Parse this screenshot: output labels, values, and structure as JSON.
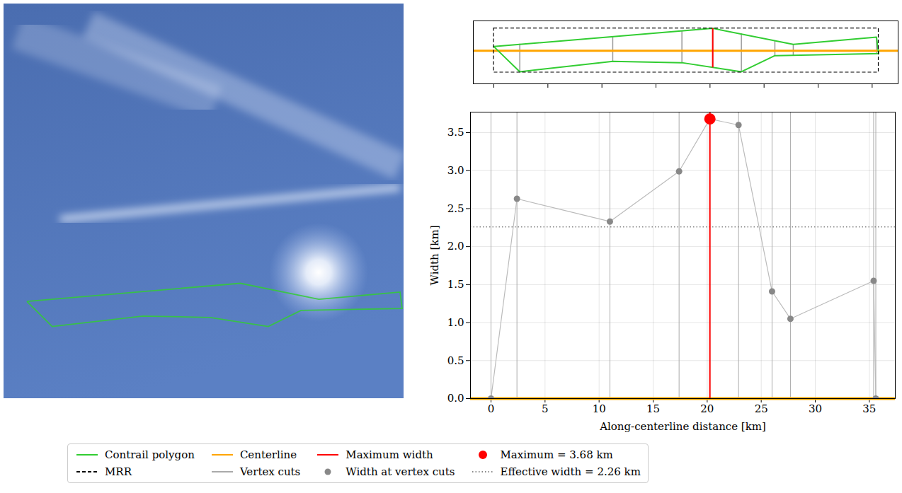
{
  "chart_data": [
    {
      "type": "schematic",
      "tick_labels": false,
      "xlim": [
        -1.9,
        37.4
      ],
      "ylim": [
        -3.1,
        2.8
      ],
      "xticks": [
        0,
        5,
        10,
        15,
        20,
        25,
        30,
        35
      ],
      "polygon": {
        "color": "#32cd32",
        "upper": {
          "x": [
            0,
            20.25,
            27.7,
            35.4
          ],
          "y": [
            0.39,
            2.1,
            0.59,
            1.27
          ]
        },
        "lower": {
          "x": [
            0,
            2.4,
            11.0,
            17.4,
            22.9,
            26.0,
            35.6
          ],
          "y": [
            0.39,
            -1.97,
            -0.99,
            -1.12,
            -1.97,
            -0.46,
            -0.27
          ]
        }
      },
      "centerline": {
        "y": 0,
        "color": "#ffa500"
      },
      "mrr": {
        "x": [
          0,
          35.6
        ],
        "y": [
          -2.04,
          2.1
        ],
        "color": "#000000",
        "line_style": "dashed"
      },
      "vertex_cut_color": "#999999",
      "max_color": "#ff0000"
    },
    {
      "type": "line",
      "xlabel": "Along-centerline distance [km]",
      "ylabel": "Width [km]",
      "xlim": [
        -1.9,
        37.4
      ],
      "ylim": [
        0,
        3.77
      ],
      "xticks": [
        0,
        5,
        10,
        15,
        20,
        25,
        30,
        35
      ],
      "yticks": [
        {
          "value": 0,
          "label": "0.0"
        },
        {
          "value": 0.5,
          "label": "0.5"
        },
        {
          "value": 1,
          "label": "1.0"
        },
        {
          "value": 1.5,
          "label": "1.5"
        },
        {
          "value": 2,
          "label": "2.0"
        },
        {
          "value": 2.5,
          "label": "2.5"
        },
        {
          "value": 3,
          "label": "3.0"
        },
        {
          "value": 3.5,
          "label": "3.5"
        }
      ],
      "grid": true,
      "x": [
        0,
        2.4,
        11.0,
        17.4,
        20.25,
        22.9,
        26.0,
        27.7,
        35.4,
        35.6
      ],
      "values": [
        0,
        2.63,
        2.33,
        2.99,
        3.68,
        3.6,
        1.41,
        1.05,
        1.55,
        0
      ],
      "color": "#bbbbbb",
      "marker": "o",
      "vertex_cut_color": "#aaaaaa",
      "centerline": {
        "y": 0,
        "color": "#ffa500"
      },
      "max_width": {
        "x": 20.25,
        "value": 3.68,
        "color": "#ff0000"
      },
      "effective_width": {
        "value": 2.26,
        "color": "#888888",
        "line_style": "dotted"
      },
      "legend": "bottom"
    }
  ],
  "legend_items": [
    {
      "label": "Contrail polygon",
      "color": "#32cd32",
      "line_style": "solid"
    },
    {
      "label": "Centerline",
      "color": "#ffa500",
      "line_style": "solid"
    },
    {
      "label": "Maximum width",
      "color": "#ff0000",
      "line_style": "solid"
    },
    {
      "label": "Maximum = 3.68 km",
      "color": "#ff0000",
      "marker": "o"
    },
    {
      "label": "MRR",
      "color": "#000000",
      "line_style": "dashed"
    },
    {
      "label": "Vertex cuts",
      "color": "#aaaaaa",
      "line_style": "solid"
    },
    {
      "label": "Width at vertex cuts",
      "color": "#888888",
      "marker": "o"
    },
    {
      "label": "Effective width = 2.26 km",
      "color": "#888888",
      "line_style": "dotted"
    }
  ]
}
